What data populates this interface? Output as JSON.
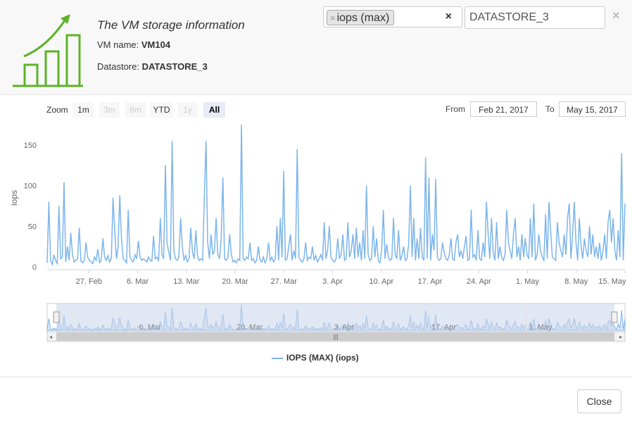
{
  "header": {
    "title": "The VM storage information",
    "vm_name_label": "VM name:",
    "vm_name": "VM104",
    "datastore_label": "Datastore:",
    "datastore": "DATASTORE_3",
    "metric_tag": "iops (max)",
    "tag_remove": "×",
    "clear_symbol": "×",
    "datastore_field_value": "DATASTORE_3",
    "close_symbol": "×"
  },
  "range_selector": {
    "zoom_label": "Zoom",
    "buttons": [
      {
        "label": "1m",
        "state": "enabled"
      },
      {
        "label": "3m",
        "state": "disabled"
      },
      {
        "label": "6m",
        "state": "disabled"
      },
      {
        "label": "YTD",
        "state": "enabled"
      },
      {
        "label": "1y",
        "state": "disabled"
      },
      {
        "label": "All",
        "state": "active"
      }
    ],
    "from_label": "From",
    "from_date": "Feb 21, 2017",
    "to_label": "To",
    "to_date": "May 15, 2017"
  },
  "footer": {
    "close_label": "Close"
  },
  "colors": {
    "series": "#7cb5ec",
    "accent_logo": "#5cb327",
    "navigator_fill": "#c8d3ea"
  },
  "chart_data": {
    "type": "line",
    "title": "",
    "xlabel": "",
    "ylabel": "iops",
    "ylim": [
      0,
      175
    ],
    "yticks": [
      0,
      50,
      100,
      150
    ],
    "x_range": [
      "2017-02-21",
      "2017-05-15"
    ],
    "x_tick_labels": [
      "27. Feb",
      "6. Mar",
      "13. Mar",
      "20. Mar",
      "27. Mar",
      "3. Apr",
      "10. Apr",
      "17. Apr",
      "24. Apr",
      "1. May",
      "8. May",
      "15. May"
    ],
    "navigator_tick_labels": [
      "6. Mar",
      "20. Mar",
      "3. Apr",
      "17. Apr",
      "1. May"
    ],
    "legend": "top-center",
    "legend_position": "bottom",
    "grid": false,
    "series": [
      {
        "name": "IOPS (MAX) (iops)",
        "values": [
          5,
          80,
          8,
          3,
          15,
          8,
          4,
          75,
          10,
          12,
          104,
          6,
          25,
          8,
          42,
          15,
          6,
          8,
          10,
          48,
          7,
          5,
          8,
          30,
          12,
          8,
          6,
          4,
          12,
          8,
          22,
          5,
          8,
          35,
          12,
          8,
          14,
          6,
          10,
          85,
          45,
          10,
          25,
          88,
          35,
          10,
          8,
          5,
          70,
          12,
          8,
          6,
          15,
          10,
          32,
          12,
          8,
          10,
          8,
          6,
          12,
          8,
          7,
          38,
          10,
          12,
          8,
          60,
          15,
          10,
          125,
          30,
          18,
          8,
          155,
          20,
          10,
          8,
          12,
          60,
          25,
          8,
          14,
          6,
          10,
          48,
          18,
          10,
          45,
          12,
          8,
          10,
          8,
          85,
          155,
          30,
          10,
          40,
          15,
          20,
          60,
          15,
          10,
          35,
          110,
          10,
          8,
          12,
          40,
          15,
          6,
          8,
          5,
          10,
          8,
          175,
          10,
          8,
          12,
          10,
          30,
          8,
          10,
          5,
          8,
          25,
          8,
          6,
          12,
          5,
          10,
          30,
          8,
          12,
          6,
          10,
          50,
          8,
          60,
          12,
          118,
          8,
          10,
          25,
          40,
          8,
          20,
          10,
          145,
          12,
          8,
          6,
          10,
          30,
          8,
          12,
          10,
          25,
          8,
          14,
          6,
          10,
          15,
          8,
          55,
          10,
          20,
          50,
          12,
          8,
          6,
          10,
          35,
          10,
          15,
          40,
          8,
          10,
          55,
          12,
          20,
          40,
          10,
          48,
          12,
          30,
          8,
          45,
          10,
          100,
          15,
          8,
          10,
          50,
          12,
          35,
          8,
          5,
          20,
          70,
          10,
          28,
          12,
          8,
          10,
          60,
          15,
          10,
          45,
          8,
          14,
          25,
          8,
          10,
          28,
          100,
          12,
          60,
          8,
          35,
          10,
          48,
          12,
          8,
          135,
          10,
          110,
          8,
          40,
          20,
          108,
          12,
          8,
          10,
          30,
          18,
          10,
          8,
          15,
          35,
          10,
          8,
          30,
          40,
          12,
          20,
          10,
          25,
          38,
          8,
          10,
          70,
          12,
          15,
          8,
          45,
          10,
          8,
          30,
          12,
          80,
          40,
          10,
          60,
          18,
          8,
          55,
          10,
          25,
          12,
          8,
          15,
          70,
          30,
          20,
          10,
          40,
          60,
          12,
          25,
          8,
          40,
          12,
          35,
          15,
          10,
          60,
          12,
          78,
          8,
          15,
          40,
          20,
          12,
          8,
          65,
          10,
          80,
          45,
          12,
          10,
          8,
          55,
          30,
          20,
          12,
          40,
          15,
          60,
          78,
          10,
          40,
          80,
          30,
          8,
          60,
          25,
          10,
          35,
          20,
          12,
          50,
          15,
          40,
          12,
          25,
          10,
          30,
          8,
          20,
          40,
          10,
          55,
          70,
          30,
          60,
          20,
          8,
          45,
          12,
          140,
          8,
          78
        ]
      }
    ]
  }
}
